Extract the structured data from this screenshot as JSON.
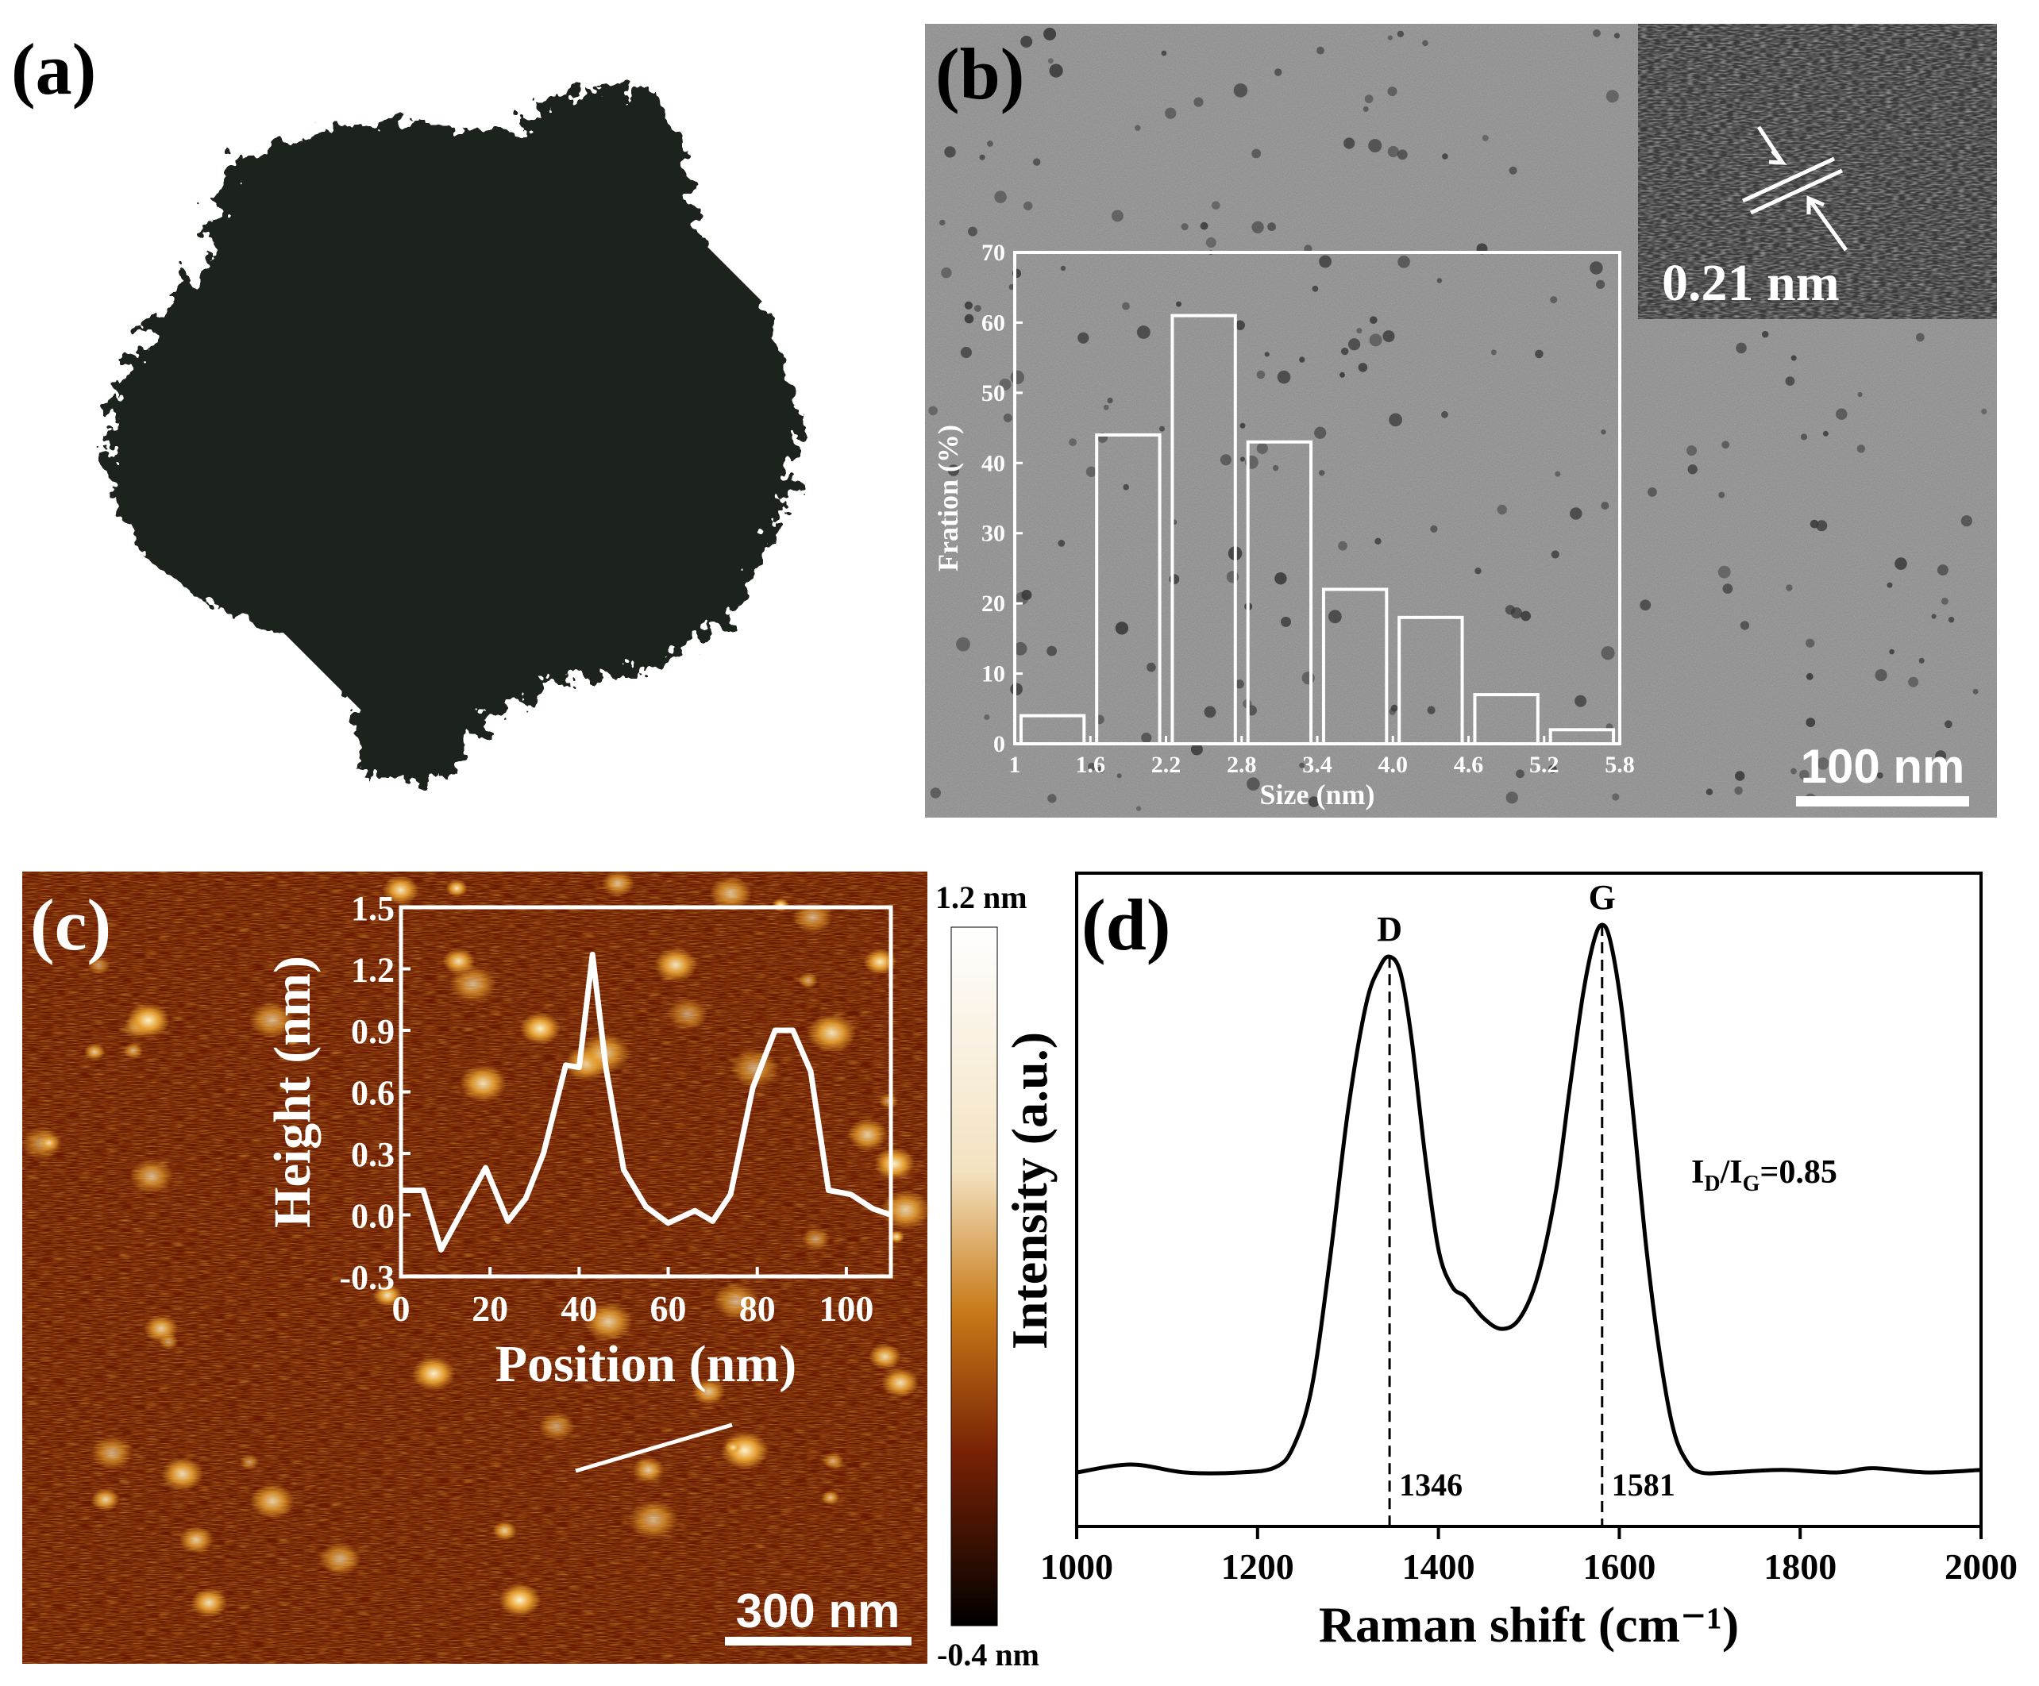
{
  "colors": {
    "afm_low": "#000000",
    "afm_mid": "#6b1a00",
    "afm_high": "#ffffff",
    "tem_bg": "#8f8f8f",
    "powder": "#1f221f"
  },
  "panels": {
    "a": {
      "label": "(a)"
    },
    "b": {
      "label": "(b)",
      "hrtem_label": "0.21 nm",
      "scale_bar": "100 nm"
    },
    "c": {
      "label": "(c)",
      "scale_bar": "300 nm",
      "colorbar_max": "1.2 nm",
      "colorbar_min": "-0.4 nm"
    },
    "d": {
      "label": "(d)",
      "annotation_ratio": "I_D/I_G=0.85"
    }
  },
  "chart_data": [
    {
      "id": "b-histogram",
      "type": "bar",
      "xlabel": "Size (nm)",
      "ylabel": "Fration (%)",
      "xlim": [
        1,
        5.8
      ],
      "ylim": [
        0,
        70
      ],
      "xticks": [
        "1",
        "1.6",
        "2.2",
        "2.8",
        "3.4",
        "4.0",
        "4.6",
        "5.2",
        "5.8"
      ],
      "yticks": [
        "0",
        "10",
        "20",
        "30",
        "40",
        "50",
        "60",
        "70"
      ],
      "bins": [
        {
          "x0": 1.05,
          "x1": 1.55,
          "value": 4
        },
        {
          "x0": 1.65,
          "x1": 2.15,
          "value": 44
        },
        {
          "x0": 2.25,
          "x1": 2.75,
          "value": 61
        },
        {
          "x0": 2.85,
          "x1": 3.35,
          "value": 43
        },
        {
          "x0": 3.45,
          "x1": 3.95,
          "value": 22
        },
        {
          "x0": 4.05,
          "x1": 4.55,
          "value": 18
        },
        {
          "x0": 4.65,
          "x1": 5.15,
          "value": 7
        },
        {
          "x0": 5.25,
          "x1": 5.75,
          "value": 2
        }
      ]
    },
    {
      "id": "c-height-profile",
      "type": "line",
      "xlabel": "Position (nm)",
      "ylabel": "Height (nm)",
      "xlim": [
        0,
        110
      ],
      "ylim": [
        -0.3,
        1.5
      ],
      "xticks": [
        "0",
        "20",
        "40",
        "60",
        "80",
        "100"
      ],
      "yticks": [
        "-0.3",
        "0.0",
        "0.3",
        "0.6",
        "0.9",
        "1.2",
        "1.5"
      ],
      "x": [
        0,
        5,
        9,
        14,
        19,
        24,
        28,
        32,
        37,
        40,
        43,
        46,
        50,
        55,
        60,
        66,
        70,
        74,
        79,
        84,
        88,
        92,
        96,
        101,
        106,
        110
      ],
      "y": [
        0.12,
        0.12,
        -0.17,
        0.03,
        0.23,
        -0.03,
        0.08,
        0.3,
        0.73,
        0.72,
        1.27,
        0.72,
        0.22,
        0.04,
        -0.04,
        0.02,
        -0.03,
        0.1,
        0.62,
        0.9,
        0.9,
        0.7,
        0.12,
        0.1,
        0.03,
        0.0
      ]
    },
    {
      "id": "d-raman",
      "type": "line",
      "xlabel": "Raman shift (cm⁻¹)",
      "ylabel": "Intensity (a.u.)",
      "xlim": [
        1000,
        2000
      ],
      "xticks": [
        "1000",
        "1200",
        "1400",
        "1600",
        "1800",
        "2000"
      ],
      "grid": false,
      "peaks": [
        {
          "label": "D",
          "position": 1346,
          "position_label": "1346"
        },
        {
          "label": "G",
          "position": 1581,
          "position_label": "1581"
        }
      ],
      "x": [
        1000,
        1060,
        1120,
        1180,
        1220,
        1240,
        1260,
        1280,
        1300,
        1320,
        1335,
        1346,
        1358,
        1370,
        1385,
        1400,
        1415,
        1430,
        1450,
        1470,
        1490,
        1510,
        1530,
        1545,
        1560,
        1572,
        1581,
        1590,
        1602,
        1615,
        1630,
        1645,
        1660,
        1675,
        1690,
        1720,
        1780,
        1840,
        1880,
        1940,
        2000
      ],
      "y": [
        0.0,
        0.015,
        0.0,
        0.0,
        0.01,
        0.05,
        0.16,
        0.4,
        0.68,
        0.88,
        0.95,
        0.97,
        0.94,
        0.82,
        0.6,
        0.42,
        0.35,
        0.33,
        0.29,
        0.27,
        0.29,
        0.37,
        0.53,
        0.72,
        0.9,
        1.0,
        1.03,
        1.0,
        0.88,
        0.68,
        0.42,
        0.22,
        0.08,
        0.02,
        0.0,
        0.0,
        0.005,
        0.0,
        0.008,
        0.0,
        0.005
      ]
    }
  ]
}
